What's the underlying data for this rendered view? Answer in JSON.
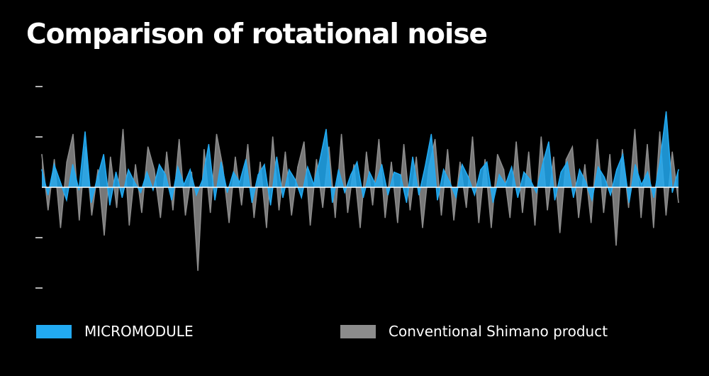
{
  "chart_data": {
    "type": "line",
    "title": "Comparison of rotational noise",
    "xlabel": "",
    "ylabel": "",
    "ylim": [
      -2,
      2
    ],
    "y_ticks": [
      2,
      1,
      0,
      -1,
      -2
    ],
    "y_tick_labels": [
      "",
      "",
      "",
      "",
      ""
    ],
    "grid": false,
    "legend_position": "bottom",
    "series": [
      {
        "name": "MICROMODULE",
        "color": "#22aaf2",
        "values": [
          0.35,
          -0.15,
          0.45,
          0.1,
          -0.25,
          0.45,
          -0.05,
          1.1,
          -0.3,
          0.2,
          0.65,
          -0.35,
          0.3,
          -0.2,
          0.35,
          0.1,
          -0.1,
          0.3,
          -0.05,
          0.45,
          0.25,
          -0.25,
          0.4,
          0.05,
          0.35,
          -0.15,
          0.15,
          0.85,
          -0.25,
          0.5,
          -0.1,
          0.3,
          0.1,
          0.55,
          -0.3,
          0.25,
          0.45,
          -0.35,
          0.6,
          -0.2,
          0.35,
          0.15,
          -0.2,
          0.4,
          0.05,
          0.55,
          1.15,
          -0.3,
          0.35,
          -0.1,
          0.25,
          0.5,
          -0.2,
          0.3,
          0.05,
          0.45,
          -0.15,
          0.3,
          0.25,
          -0.3,
          0.6,
          -0.15,
          0.4,
          1.05,
          -0.25,
          0.35,
          0.1,
          -0.2,
          0.45,
          0.2,
          -0.15,
          0.35,
          0.5,
          -0.3,
          0.25,
          0.05,
          0.4,
          -0.2,
          0.3,
          0.15,
          -0.1,
          0.45,
          0.9,
          -0.25,
          0.3,
          0.5,
          -0.2,
          0.35,
          0.1,
          -0.25,
          0.4,
          0.2,
          -0.15,
          0.35,
          0.65,
          -0.3,
          0.45,
          0.05,
          0.3,
          -0.2,
          0.5,
          1.5,
          -0.1,
          0.35
        ]
      },
      {
        "name": "Conventional Shimano product",
        "color": "#8c8c8c",
        "values": [
          0.65,
          -0.45,
          0.55,
          -0.8,
          0.5,
          1.05,
          -0.65,
          0.8,
          -0.55,
          0.35,
          -0.95,
          0.6,
          -0.4,
          1.15,
          -0.75,
          0.45,
          -0.5,
          0.8,
          0.35,
          -0.6,
          0.7,
          -0.45,
          0.95,
          -0.55,
          0.3,
          -1.65,
          0.75,
          -0.5,
          1.05,
          0.4,
          -0.7,
          0.6,
          -0.35,
          0.85,
          -0.6,
          0.5,
          -0.8,
          1.0,
          -0.45,
          0.7,
          -0.55,
          0.4,
          0.9,
          -0.75,
          0.55,
          -0.4,
          0.8,
          -0.6,
          1.05,
          -0.5,
          0.45,
          -0.8,
          0.7,
          -0.35,
          0.95,
          -0.6,
          0.5,
          -0.7,
          0.85,
          -0.45,
          0.6,
          -0.8,
          0.4,
          0.95,
          -0.55,
          0.75,
          -0.65,
          0.5,
          -0.4,
          1.0,
          -0.7,
          0.55,
          -0.8,
          0.65,
          0.35,
          -0.6,
          0.9,
          -0.5,
          0.7,
          -0.75,
          1.0,
          -0.45,
          0.6,
          -0.9,
          0.55,
          0.8,
          -0.6,
          0.45,
          -0.7,
          0.95,
          -0.5,
          0.65,
          -1.15,
          0.75,
          -0.4,
          1.15,
          -0.6,
          0.85,
          -0.8,
          1.1,
          -0.55,
          0.7,
          -0.3
        ]
      }
    ]
  },
  "legend": {
    "items": [
      {
        "label": "MICROMODULE",
        "color": "#22aaf2"
      },
      {
        "label": "Conventional Shimano product",
        "color": "#8c8c8c"
      }
    ]
  },
  "baseline_color": "#ffffff"
}
